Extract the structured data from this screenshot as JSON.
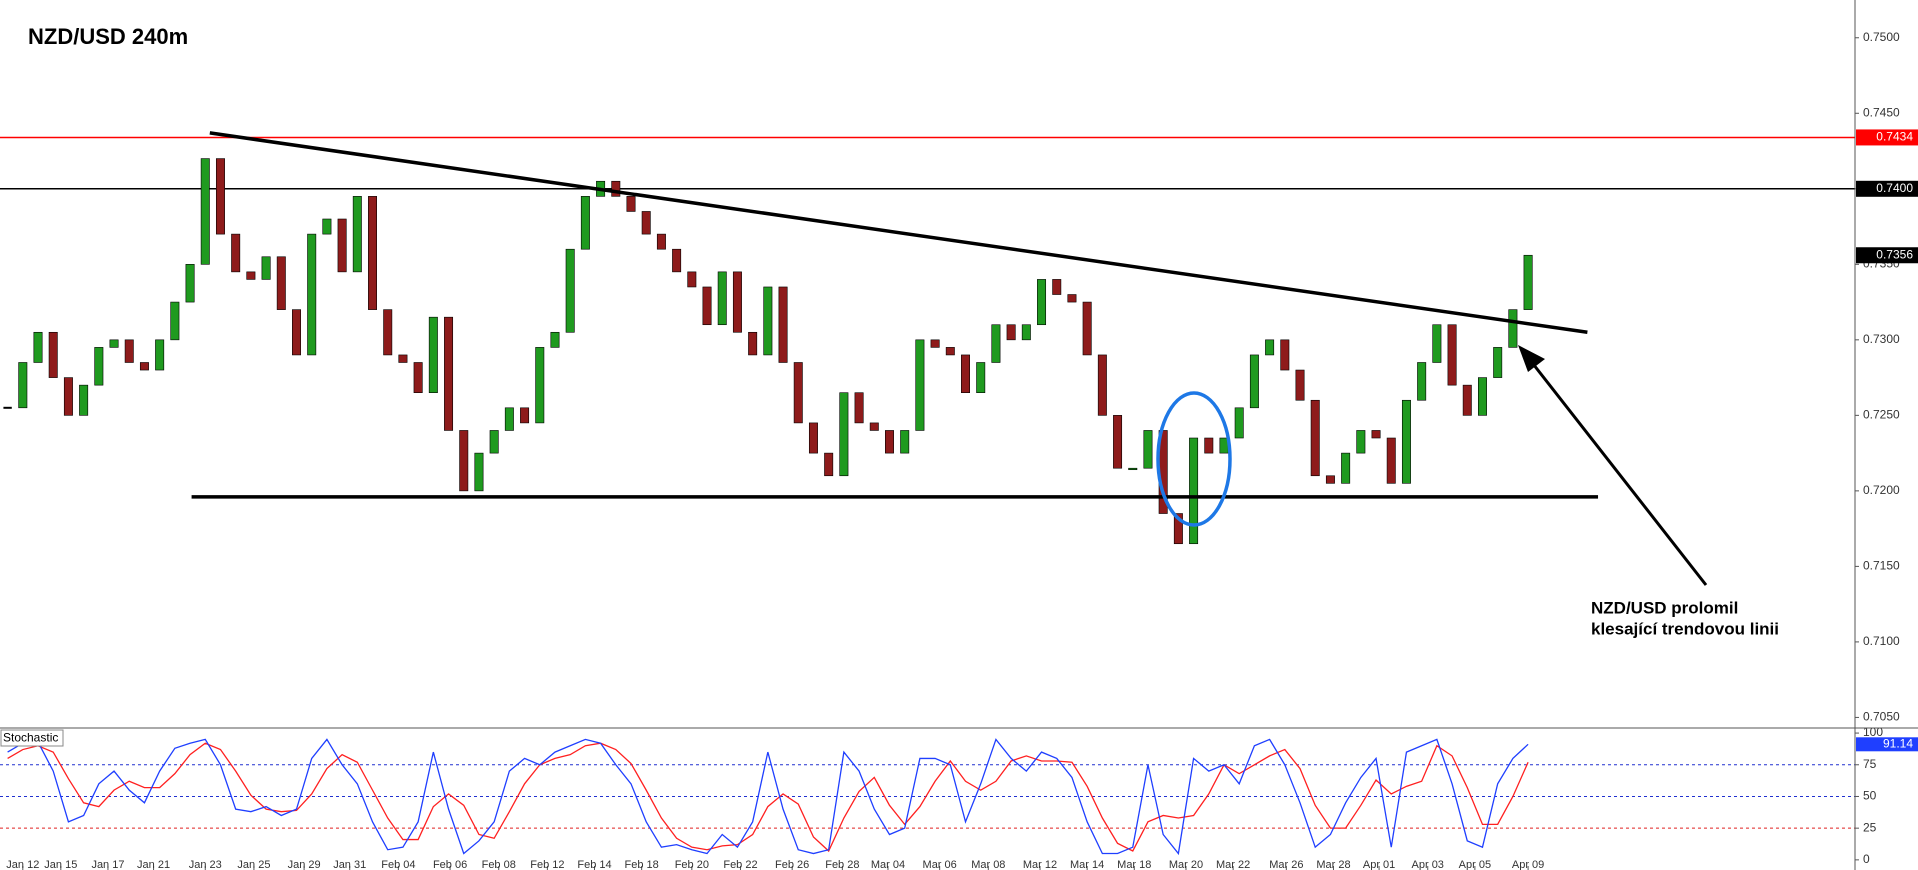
{
  "chart_data": [
    {
      "type": "candlestick",
      "title": "NZD/USD 240m",
      "close": [
        0.7255,
        0.7285,
        0.7305,
        0.7275,
        0.725,
        0.727,
        0.7295,
        0.73,
        0.7285,
        0.728,
        0.73,
        0.7325,
        0.735,
        0.742,
        0.737,
        0.7345,
        0.734,
        0.7355,
        0.732,
        0.729,
        0.737,
        0.738,
        0.7345,
        0.7395,
        0.732,
        0.729,
        0.7285,
        0.7265,
        0.7315,
        0.724,
        0.72,
        0.7225,
        0.724,
        0.7255,
        0.7245,
        0.7295,
        0.7305,
        0.736,
        0.7395,
        0.7405,
        0.7395,
        0.7385,
        0.737,
        0.736,
        0.7345,
        0.7335,
        0.731,
        0.7345,
        0.7305,
        0.729,
        0.7335,
        0.7285,
        0.7245,
        0.7225,
        0.721,
        0.7265,
        0.7245,
        0.724,
        0.7225,
        0.724,
        0.73,
        0.7295,
        0.729,
        0.7265,
        0.7285,
        0.731,
        0.73,
        0.731,
        0.734,
        0.733,
        0.7325,
        0.729,
        0.725,
        0.7215,
        0.7215,
        0.724,
        0.7185,
        0.7165,
        0.7235,
        0.7225,
        0.7235,
        0.7255,
        0.729,
        0.73,
        0.728,
        0.726,
        0.721,
        0.7205,
        0.7225,
        0.724,
        0.7235,
        0.7205,
        0.726,
        0.7285,
        0.731,
        0.727,
        0.725,
        0.7275,
        0.7295,
        0.732,
        0.7356
      ],
      "up_color": "#1f9a1f",
      "down_color": "#8e1b1b",
      "last_price_label": "0.7356",
      "xlim": [
        -0.5,
        121.5
      ],
      "xticks": [
        {
          "value": 1.0,
          "label": "Jan 12"
        },
        {
          "value": 3.5,
          "label": "Jan 15"
        },
        {
          "value": 6.6,
          "label": "Jan 17"
        },
        {
          "value": 9.6,
          "label": "Jan 21"
        },
        {
          "value": 13.0,
          "label": "Jan 23"
        },
        {
          "value": 16.2,
          "label": "Jan 25"
        },
        {
          "value": 19.5,
          "label": "Jan 29"
        },
        {
          "value": 22.5,
          "label": "Jan 31"
        },
        {
          "value": 25.7,
          "label": "Feb 04"
        },
        {
          "value": 29.1,
          "label": "Feb 06"
        },
        {
          "value": 32.3,
          "label": "Feb 08"
        },
        {
          "value": 35.5,
          "label": "Feb 12"
        },
        {
          "value": 38.6,
          "label": "Feb 14"
        },
        {
          "value": 41.7,
          "label": "Feb 18"
        },
        {
          "value": 45.0,
          "label": "Feb 20"
        },
        {
          "value": 48.2,
          "label": "Feb 22"
        },
        {
          "value": 51.6,
          "label": "Feb 26"
        },
        {
          "value": 54.9,
          "label": "Feb 28"
        },
        {
          "value": 57.9,
          "label": "Mar 04"
        },
        {
          "value": 61.3,
          "label": "Mar 06"
        },
        {
          "value": 64.5,
          "label": "Mar 08"
        },
        {
          "value": 67.9,
          "label": "Mar 12"
        },
        {
          "value": 71.0,
          "label": "Mar 14"
        },
        {
          "value": 74.1,
          "label": "Mar 18"
        },
        {
          "value": 77.5,
          "label": "Mar 20"
        },
        {
          "value": 80.6,
          "label": "Mar 22"
        },
        {
          "value": 84.1,
          "label": "Mar 26"
        },
        {
          "value": 87.2,
          "label": "Mar 28"
        },
        {
          "value": 90.2,
          "label": "Apr 01"
        },
        {
          "value": 93.4,
          "label": "Apr 03"
        },
        {
          "value": 96.5,
          "label": "Apr 05"
        },
        {
          "value": 100.0,
          "label": "Apr 09"
        }
      ],
      "ylim": [
        0.7043,
        0.7525
      ],
      "yticks": [
        {
          "value": 0.705,
          "label": "0.7050"
        },
        {
          "value": 0.71,
          "label": "0.7100"
        },
        {
          "value": 0.715,
          "label": "0.7150"
        },
        {
          "value": 0.72,
          "label": "0.7200"
        },
        {
          "value": 0.725,
          "label": "0.7250"
        },
        {
          "value": 0.73,
          "label": "0.7300"
        },
        {
          "value": 0.735,
          "label": "0.7350"
        },
        {
          "value": 0.74,
          "label": "0.7400"
        },
        {
          "value": 0.745,
          "label": "0.7450"
        },
        {
          "value": 0.75,
          "label": "0.7500"
        }
      ],
      "levels": [
        {
          "value": 0.7434,
          "label": "0.7434",
          "color": "#ff0000"
        },
        {
          "value": 0.74,
          "label": "0.7400",
          "color": "#000000"
        }
      ],
      "trendlines": [
        {
          "x": [
            13.3,
            103.9
          ],
          "y": [
            0.7437,
            0.7305
          ]
        },
        {
          "x": [
            12.1,
            104.6
          ],
          "y": [
            0.7196,
            0.7196
          ]
        }
      ],
      "annotation": [
        "NZD/USD prolomil",
        "klesající trendovou linii"
      ]
    },
    {
      "type": "line",
      "title": "Stochastic",
      "series": [
        {
          "color": "#1f3fff",
          "values": [
            85,
            92,
            93,
            70,
            30,
            35,
            60,
            70,
            55,
            45,
            70,
            88,
            92,
            95,
            75,
            40,
            38,
            42,
            35,
            40,
            80,
            95,
            75,
            60,
            30,
            8,
            10,
            30,
            85,
            40,
            5,
            15,
            30,
            70,
            80,
            75,
            85,
            90,
            95,
            92,
            75,
            60,
            30,
            10,
            12,
            8,
            5,
            20,
            10,
            30,
            85,
            40,
            8,
            5,
            8,
            85,
            70,
            40,
            20,
            25,
            80,
            80,
            75,
            30,
            60,
            95,
            80,
            70,
            85,
            80,
            65,
            30,
            5,
            5,
            10,
            75,
            20,
            5,
            80,
            70,
            75,
            60,
            90,
            95,
            75,
            45,
            10,
            20,
            45,
            65,
            80,
            10,
            85,
            90,
            95,
            60,
            15,
            10,
            60,
            80,
            91.14
          ]
        },
        {
          "color": "#ff2020",
          "values": [
            80,
            87,
            90,
            85,
            64,
            45,
            42,
            55,
            62,
            57,
            57,
            68,
            83,
            92,
            87,
            70,
            51,
            40,
            38,
            39,
            52,
            72,
            83,
            77,
            55,
            33,
            16,
            16,
            42,
            52,
            43,
            20,
            17,
            38,
            60,
            75,
            80,
            83,
            90,
            92,
            87,
            76,
            55,
            33,
            17,
            10,
            8,
            11,
            12,
            20,
            42,
            52,
            44,
            18,
            7,
            33,
            54,
            65,
            43,
            28,
            42,
            62,
            78,
            62,
            55,
            62,
            78,
            82,
            78,
            78,
            77,
            58,
            33,
            13,
            7,
            30,
            35,
            33,
            35,
            52,
            75,
            68,
            75,
            82,
            87,
            72,
            43,
            25,
            25,
            43,
            63,
            52,
            58,
            62,
            90,
            82,
            57,
            28,
            28,
            50,
            77
          ]
        }
      ],
      "ylim": [
        -8,
        104
      ],
      "yticks": [
        0,
        25,
        50,
        75,
        100
      ],
      "levels": [
        {
          "value": 75,
          "color": "#2030d0"
        },
        {
          "value": 50,
          "color": "#2030d0"
        },
        {
          "value": 25,
          "color": "#e02020"
        }
      ]
    }
  ]
}
